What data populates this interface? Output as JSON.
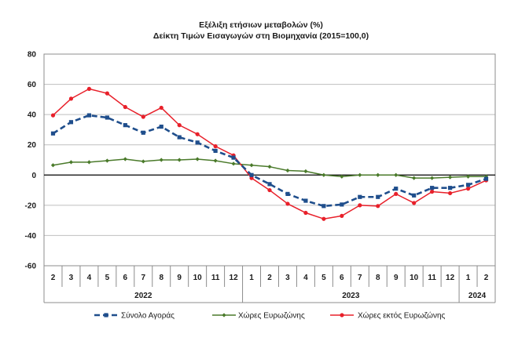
{
  "chart_data": {
    "type": "line",
    "title": "Εξέλιξη ετήσιων μεταβολών (%)",
    "subtitle": "Δείκτη Τιμών Εισαγωγών στη Βιομηχανία (2015=100,0)",
    "xlabel": "",
    "ylabel": "",
    "ylim": [
      -60,
      80
    ],
    "yticks": [
      "80",
      "60",
      "40",
      "20",
      "0",
      "-20",
      "-40",
      "-60"
    ],
    "ytick_values": [
      80,
      60,
      40,
      20,
      0,
      -20,
      -40,
      -60
    ],
    "categories": [
      "2",
      "3",
      "4",
      "5",
      "6",
      "7",
      "8",
      "9",
      "10",
      "11",
      "12",
      "1",
      "2",
      "3",
      "4",
      "5",
      "6",
      "7",
      "8",
      "9",
      "10",
      "11",
      "12",
      "1",
      "2"
    ],
    "year_groups": [
      {
        "label": "2022",
        "span": 11
      },
      {
        "label": "2023",
        "span": 12
      },
      {
        "label": "2024",
        "span": 2
      }
    ],
    "grid": true,
    "legend_position": "bottom",
    "series": [
      {
        "name": "Σύνολο Αγοράς",
        "color": "#1f4e8c",
        "style": "dashed",
        "marker": "square",
        "values": [
          27.5,
          35,
          39.5,
          38,
          33,
          28,
          32,
          25,
          21.5,
          16,
          11.5,
          0,
          -6,
          -12.5,
          -17,
          -20.5,
          -19.5,
          -14.5,
          -14.5,
          -9,
          -13.5,
          -8.5,
          -8.5,
          -6.5,
          -2.5
        ]
      },
      {
        "name": "Χώρες Ευρωζώνης",
        "color": "#4a7a2a",
        "style": "solid",
        "marker": "diamond",
        "values": [
          6.5,
          8.5,
          8.5,
          9.5,
          10.5,
          9,
          10,
          10,
          10.5,
          9.5,
          7.5,
          6.5,
          5.5,
          3,
          2.5,
          0,
          -1,
          0,
          0,
          0,
          -2,
          -2,
          -1.5,
          -1,
          -1
        ]
      },
      {
        "name": "Χώρες εκτός Ευρωζώνης",
        "color": "#e8202a",
        "style": "solid",
        "marker": "circle",
        "values": [
          39.5,
          50.5,
          57,
          54,
          45,
          38.5,
          44.5,
          33,
          27,
          19,
          13,
          -2,
          -10,
          -19,
          -25,
          -29,
          -27,
          -20,
          -20.5,
          -12.5,
          -18.5,
          -11,
          -12,
          -9,
          -3.5
        ]
      }
    ]
  }
}
